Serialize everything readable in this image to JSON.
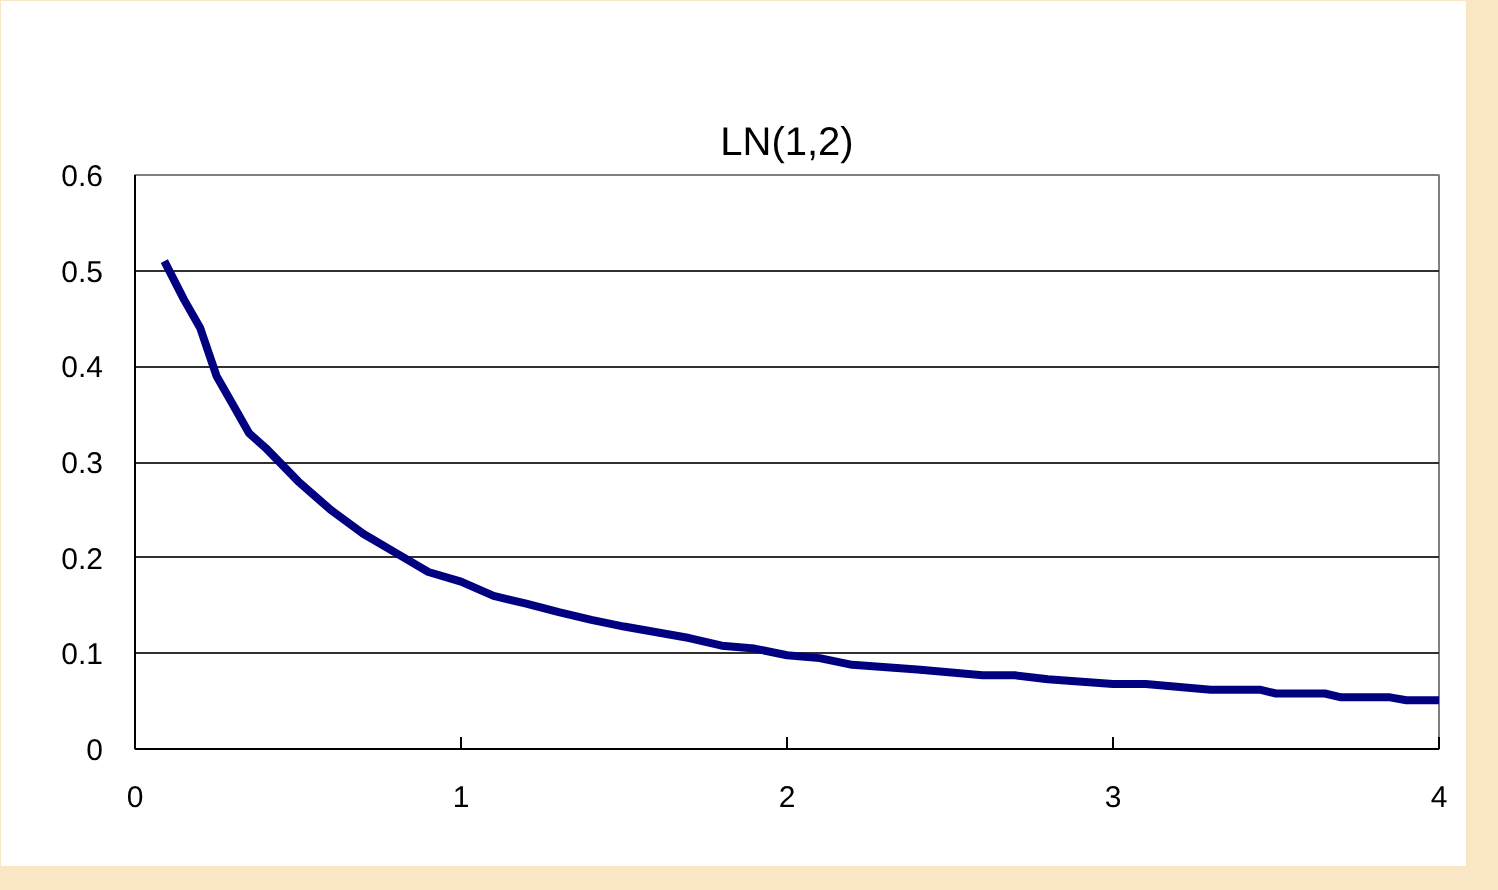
{
  "chart_data": {
    "type": "line",
    "title": "LN(1,2)",
    "x": [
      0.09,
      0.15,
      0.2,
      0.25,
      0.3,
      0.35,
      0.4,
      0.5,
      0.6,
      0.7,
      0.8,
      0.9,
      1.0,
      1.1,
      1.2,
      1.3,
      1.4,
      1.5,
      1.6,
      1.7,
      1.8,
      1.9,
      2.0,
      2.1,
      2.2,
      2.4,
      2.6,
      2.7,
      2.8,
      3.0,
      3.1,
      3.3,
      3.45,
      3.5,
      3.65,
      3.7,
      3.85,
      3.9,
      4.0
    ],
    "series": [
      {
        "color": "#000080",
        "values": [
          0.51,
          0.47,
          0.44,
          0.39,
          0.36,
          0.33,
          0.315,
          0.28,
          0.25,
          0.225,
          0.205,
          0.185,
          0.175,
          0.16,
          0.152,
          0.143,
          0.135,
          0.128,
          0.122,
          0.116,
          0.108,
          0.105,
          0.098,
          0.095,
          0.088,
          0.083,
          0.077,
          0.077,
          0.073,
          0.068,
          0.068,
          0.062,
          0.062,
          0.058,
          0.058,
          0.054,
          0.054,
          0.051,
          0.051
        ]
      }
    ],
    "xlim": [
      0,
      4
    ],
    "xticks": [
      0,
      1,
      2,
      3,
      4
    ],
    "ylim": [
      0,
      0.6
    ],
    "yticks": [
      0,
      0.1,
      0.2,
      0.3,
      0.4,
      0.5,
      0.6
    ],
    "grid": "y",
    "marker": "none",
    "line_style": "solid"
  }
}
